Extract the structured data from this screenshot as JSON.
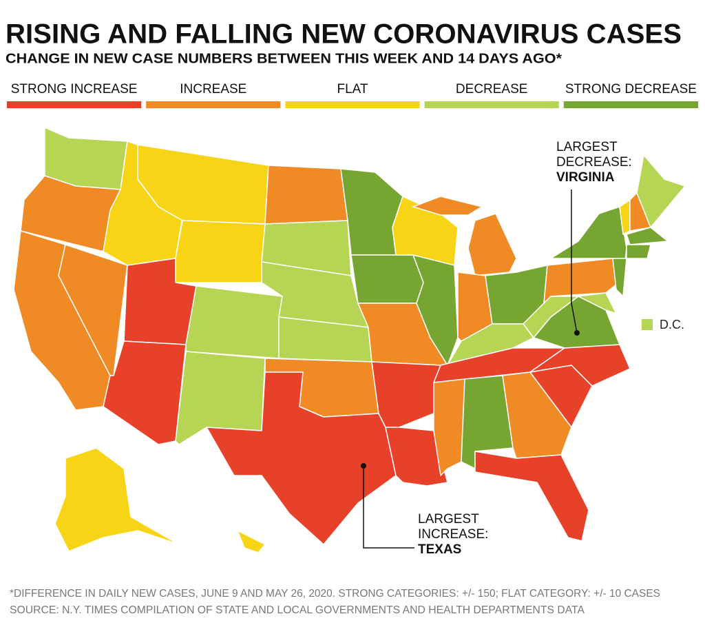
{
  "header": {
    "title": "RISING AND FALLING NEW CORONAVIRUS CASES",
    "subtitle": "CHANGE IN NEW CASE NUMBERS BETWEEN THIS WEEK AND 14 DAYS AGO*"
  },
  "legend": [
    {
      "label": "STRONG INCREASE",
      "color": "#e8412a"
    },
    {
      "label": "INCREASE",
      "color": "#f08a24"
    },
    {
      "label": "FLAT",
      "color": "#f7d516"
    },
    {
      "label": "DECREASE",
      "color": "#b7d554"
    },
    {
      "label": "STRONG DECREASE",
      "color": "#76a532"
    }
  ],
  "annotations": [
    {
      "line1": "LARGEST",
      "line2": "DECREASE:",
      "state": "VIRGINIA"
    },
    {
      "line1": "LARGEST",
      "line2": "INCREASE:",
      "state": "TEXAS"
    }
  ],
  "dc_label": "D.C.",
  "footnotes": [
    "*DIFFERENCE IN DAILY NEW CASES, JUNE 9 AND MAY 26, 2020. STRONG CATEGORIES: +/- 150; FLAT CATEGORY: +/- 10 CASES",
    "SOURCE: N.Y. TIMES COMPILATION OF STATE AND LOCAL GOVERNMENTS AND HEALTH DEPARTMENTS DATA"
  ]
}
